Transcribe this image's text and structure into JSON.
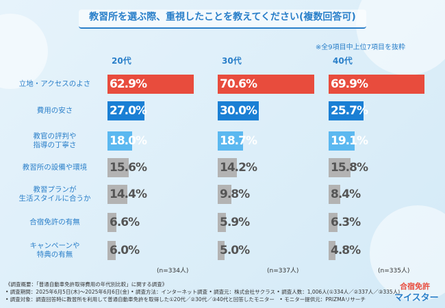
{
  "chart_data": {
    "type": "bar",
    "orientation": "horizontal",
    "title": "教習所を選ぶ際、重視したことを教えてください(複数回答可)",
    "note": "※全9項目中上位7項目を抜粋",
    "categories": [
      "立地・アクセスのよさ",
      "費用の安さ",
      "教官の評判や\n指導の丁寧さ",
      "教習所の設備や環境",
      "教習プランが\n生活スタイルに合うか",
      "合宿免許の有無",
      "キャンペーンや\n特典の有無"
    ],
    "colors": [
      "#e84c3d",
      "#1a7fd4",
      "#5bb8f0",
      "#b3b3b3",
      "#b3b3b3",
      "#b3b3b3",
      "#b3b3b3"
    ],
    "series": [
      {
        "name": "20代",
        "n_label": "(n=334人)",
        "values": [
          62.9,
          27.0,
          18.0,
          15.6,
          14.4,
          6.6,
          6.0
        ],
        "value_labels": [
          "62.9%",
          "27.0%",
          "18.0%",
          "15.6%",
          "14.4%",
          "6.6%",
          "6.0%"
        ]
      },
      {
        "name": "30代",
        "n_label": "(n=337人)",
        "values": [
          70.6,
          30.0,
          18.7,
          14.2,
          9.8,
          5.9,
          5.0
        ],
        "value_labels": [
          "70.6%",
          "30.0%",
          "18.7%",
          "14.2%",
          "9.8%",
          "5.9%",
          "5.0%"
        ]
      },
      {
        "name": "40代",
        "n_label": "(n=335人)",
        "values": [
          69.9,
          25.7,
          19.1,
          15.8,
          8.4,
          6.3,
          4.8
        ],
        "value_labels": [
          "69.9%",
          "25.7%",
          "19.1%",
          "15.8%",
          "8.4%",
          "6.3%",
          "4.8%"
        ]
      }
    ],
    "footnotes": [
      "《調査概要：「普通自動車免許取得費用の年代別比較」に関する調査》",
      "• 調査期間：2025年6月5日(木)～2025年6月6日(金) • 調査方法：インターネット調査 • 調査元：株式会社サクラス • 調査人数：1,006人(①334人／②337人／③335人)",
      "• 調査対象：調査回答時に教習所を利用して普通自動車免許を取得した①20代／②30代／③40代と回答したモニター　• モニター提供元：PRIZMAリサーチ"
    ],
    "logo": [
      "合宿免許",
      "マイスター"
    ]
  }
}
